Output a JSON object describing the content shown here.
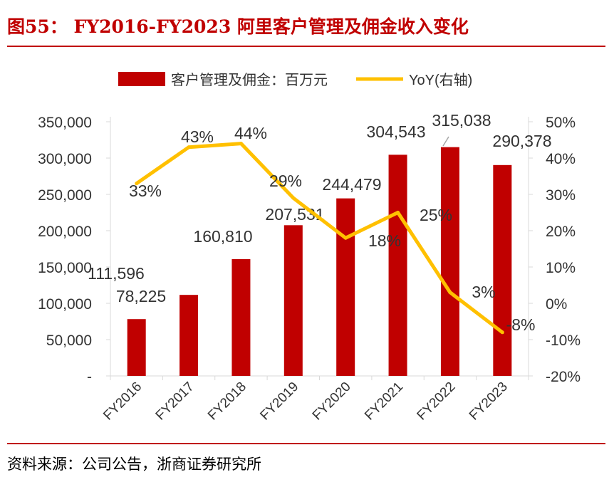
{
  "title": "图55： FY2016-FY2023 阿里客户管理及佣金收入变化",
  "source": "资料来源：公司公告，浙商证券研究所",
  "colors": {
    "bar": "#C00000",
    "line": "#FFC000",
    "accent": "#C00000"
  },
  "chart_data": {
    "type": "bar+line",
    "categories": [
      "FY2016",
      "FY2017",
      "FY2018",
      "FY2019",
      "FY2020",
      "FY2021",
      "FY2022",
      "FY2023"
    ],
    "series": [
      {
        "name": "客户管理及佣金：百万元",
        "type": "bar",
        "axis": "left",
        "values": [
          78225,
          111596,
          160810,
          207531,
          244479,
          304543,
          315038,
          290378
        ],
        "labels": [
          "78,225",
          "111,596",
          "160,810",
          "207,531",
          "244,479",
          "304,543",
          "315,038",
          "290,378"
        ]
      },
      {
        "name": "YoY(右轴)",
        "type": "line",
        "axis": "right",
        "values": [
          33,
          43,
          44,
          29,
          18,
          25,
          3,
          -8
        ],
        "labels": [
          "33%",
          "43%",
          "44%",
          "29%",
          "18%",
          "25%",
          "3%",
          "-8%"
        ]
      }
    ],
    "y_left": {
      "ylim": [
        0,
        350000
      ],
      "ticks": [
        0,
        50000,
        100000,
        150000,
        200000,
        250000,
        300000,
        350000
      ],
      "tick_labels": [
        "-",
        "50,000",
        "100,000",
        "150,000",
        "200,000",
        "250,000",
        "300,000",
        "350,000"
      ]
    },
    "y_right": {
      "ylim": [
        -20,
        50
      ],
      "ticks": [
        -20,
        -10,
        0,
        10,
        20,
        30,
        40,
        50
      ],
      "tick_labels": [
        "-20%",
        "-10%",
        "0%",
        "10%",
        "20%",
        "30%",
        "40%",
        "50%"
      ]
    },
    "legend": "top-center",
    "grid": false
  }
}
